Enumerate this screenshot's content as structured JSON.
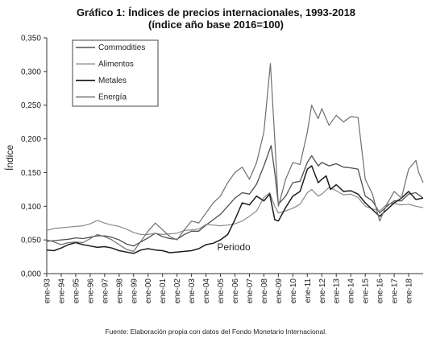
{
  "chart_data": {
    "type": "line",
    "title": "Gráfico 1: Índices de precios internacionales, 1993-2018",
    "subtitle": "(índice año base 2016=100)",
    "xlabel": "Periodo",
    "ylabel": "Índice",
    "source": "Fuente: Elaboración propia con datos del Fondo Monetario Internacional.",
    "xlim": [
      1993.0,
      2019.0
    ],
    "ylim": [
      0,
      0.35
    ],
    "y_ticks": [
      "0,000",
      "0,050",
      "0,100",
      "0,150",
      "0,200",
      "0,250",
      "0,300",
      "0,350"
    ],
    "x_ticks": [
      {
        "x": 1993,
        "label": "ene-93"
      },
      {
        "x": 1994,
        "label": "ene-94"
      },
      {
        "x": 1995,
        "label": "ene-95"
      },
      {
        "x": 1996,
        "label": "ene-96"
      },
      {
        "x": 1997,
        "label": "ene-97"
      },
      {
        "x": 1998,
        "label": "ene-98"
      },
      {
        "x": 1999,
        "label": "ene-99"
      },
      {
        "x": 2000,
        "label": "ene-00"
      },
      {
        "x": 2001,
        "label": "ene-01"
      },
      {
        "x": 2002,
        "label": "ene-02"
      },
      {
        "x": 2003,
        "label": "ene-03"
      },
      {
        "x": 2004,
        "label": "ene-04"
      },
      {
        "x": 2005,
        "label": "ene-05"
      },
      {
        "x": 2006,
        "label": "ene-06"
      },
      {
        "x": 2007,
        "label": "ene-07"
      },
      {
        "x": 2008,
        "label": "ene-08"
      },
      {
        "x": 2009,
        "label": "ene-09"
      },
      {
        "x": 2010,
        "label": "ene-10"
      },
      {
        "x": 2011,
        "label": "ene-11"
      },
      {
        "x": 2012,
        "label": "ene-12"
      },
      {
        "x": 2013,
        "label": "ene-13"
      },
      {
        "x": 2014,
        "label": "ene-14"
      },
      {
        "x": 2015,
        "label": "ene-15"
      },
      {
        "x": 2016,
        "label": "ene-16"
      },
      {
        "x": 2017,
        "label": "ene-17"
      },
      {
        "x": 2018,
        "label": "ene-18"
      }
    ],
    "grid": false,
    "legend": "top-left",
    "series": [
      {
        "name": "Commodities",
        "color": "#505050",
        "width": 1.3,
        "points": [
          [
            1993.0,
            0.048
          ],
          [
            1993.5,
            0.049
          ],
          [
            1994.0,
            0.05
          ],
          [
            1994.5,
            0.051
          ],
          [
            1995.0,
            0.053
          ],
          [
            1995.5,
            0.052
          ],
          [
            1996.0,
            0.054
          ],
          [
            1996.5,
            0.056
          ],
          [
            1997.0,
            0.056
          ],
          [
            1997.5,
            0.054
          ],
          [
            1998.0,
            0.05
          ],
          [
            1998.5,
            0.044
          ],
          [
            1999.0,
            0.041
          ],
          [
            1999.5,
            0.047
          ],
          [
            2000.0,
            0.053
          ],
          [
            2000.5,
            0.06
          ],
          [
            2001.0,
            0.055
          ],
          [
            2001.5,
            0.052
          ],
          [
            2002.0,
            0.051
          ],
          [
            2002.5,
            0.058
          ],
          [
            2003.0,
            0.063
          ],
          [
            2003.5,
            0.063
          ],
          [
            2004.0,
            0.072
          ],
          [
            2004.5,
            0.08
          ],
          [
            2005.0,
            0.088
          ],
          [
            2005.5,
            0.1
          ],
          [
            2006.0,
            0.112
          ],
          [
            2006.5,
            0.12
          ],
          [
            2007.0,
            0.118
          ],
          [
            2007.5,
            0.133
          ],
          [
            2008.0,
            0.16
          ],
          [
            2008.5,
            0.19
          ],
          [
            2008.75,
            0.15
          ],
          [
            2009.0,
            0.103
          ],
          [
            2009.5,
            0.115
          ],
          [
            2010.0,
            0.135
          ],
          [
            2010.5,
            0.137
          ],
          [
            2011.0,
            0.165
          ],
          [
            2011.3,
            0.175
          ],
          [
            2011.75,
            0.16
          ],
          [
            2012.0,
            0.165
          ],
          [
            2012.5,
            0.16
          ],
          [
            2013.0,
            0.163
          ],
          [
            2013.5,
            0.158
          ],
          [
            2014.0,
            0.157
          ],
          [
            2014.5,
            0.155
          ],
          [
            2015.0,
            0.115
          ],
          [
            2015.5,
            0.108
          ],
          [
            2016.0,
            0.09
          ],
          [
            2016.5,
            0.1
          ],
          [
            2017.0,
            0.108
          ],
          [
            2017.5,
            0.108
          ],
          [
            2018.0,
            0.118
          ],
          [
            2018.5,
            0.12
          ],
          [
            2019.0,
            0.112
          ]
        ]
      },
      {
        "name": "Alimentos",
        "color": "#8a8a8a",
        "width": 1.2,
        "points": [
          [
            1993.0,
            0.064
          ],
          [
            1993.5,
            0.067
          ],
          [
            1994.0,
            0.068
          ],
          [
            1994.5,
            0.069
          ],
          [
            1995.0,
            0.07
          ],
          [
            1995.5,
            0.071
          ],
          [
            1996.0,
            0.074
          ],
          [
            1996.5,
            0.079
          ],
          [
            1997.0,
            0.075
          ],
          [
            1997.5,
            0.072
          ],
          [
            1998.0,
            0.07
          ],
          [
            1998.5,
            0.066
          ],
          [
            1999.0,
            0.061
          ],
          [
            1999.5,
            0.058
          ],
          [
            2000.0,
            0.058
          ],
          [
            2000.5,
            0.06
          ],
          [
            2001.0,
            0.058
          ],
          [
            2001.5,
            0.059
          ],
          [
            2002.0,
            0.06
          ],
          [
            2002.5,
            0.064
          ],
          [
            2003.0,
            0.065
          ],
          [
            2003.5,
            0.066
          ],
          [
            2004.0,
            0.073
          ],
          [
            2004.5,
            0.072
          ],
          [
            2005.0,
            0.071
          ],
          [
            2005.5,
            0.072
          ],
          [
            2006.0,
            0.074
          ],
          [
            2006.5,
            0.078
          ],
          [
            2007.0,
            0.085
          ],
          [
            2007.5,
            0.093
          ],
          [
            2008.0,
            0.113
          ],
          [
            2008.4,
            0.12
          ],
          [
            2008.75,
            0.1
          ],
          [
            2009.0,
            0.09
          ],
          [
            2009.5,
            0.093
          ],
          [
            2010.0,
            0.097
          ],
          [
            2010.5,
            0.103
          ],
          [
            2011.0,
            0.12
          ],
          [
            2011.3,
            0.125
          ],
          [
            2011.75,
            0.115
          ],
          [
            2012.0,
            0.118
          ],
          [
            2012.5,
            0.128
          ],
          [
            2013.0,
            0.123
          ],
          [
            2013.5,
            0.117
          ],
          [
            2014.0,
            0.118
          ],
          [
            2014.5,
            0.113
          ],
          [
            2015.0,
            0.1
          ],
          [
            2015.5,
            0.096
          ],
          [
            2016.0,
            0.093
          ],
          [
            2016.5,
            0.103
          ],
          [
            2017.0,
            0.104
          ],
          [
            2017.5,
            0.102
          ],
          [
            2018.0,
            0.103
          ],
          [
            2018.5,
            0.1
          ],
          [
            2019.0,
            0.098
          ]
        ]
      },
      {
        "name": "Metales",
        "color": "#1c1c1c",
        "width": 1.5,
        "points": [
          [
            1993.0,
            0.035
          ],
          [
            1993.5,
            0.034
          ],
          [
            1994.0,
            0.038
          ],
          [
            1994.5,
            0.043
          ],
          [
            1995.0,
            0.046
          ],
          [
            1995.5,
            0.043
          ],
          [
            1996.0,
            0.041
          ],
          [
            1996.5,
            0.039
          ],
          [
            1997.0,
            0.04
          ],
          [
            1997.5,
            0.038
          ],
          [
            1998.0,
            0.034
          ],
          [
            1998.5,
            0.032
          ],
          [
            1999.0,
            0.03
          ],
          [
            1999.5,
            0.035
          ],
          [
            2000.0,
            0.037
          ],
          [
            2000.5,
            0.035
          ],
          [
            2001.0,
            0.034
          ],
          [
            2001.5,
            0.031
          ],
          [
            2002.0,
            0.032
          ],
          [
            2002.5,
            0.033
          ],
          [
            2003.0,
            0.034
          ],
          [
            2003.5,
            0.037
          ],
          [
            2004.0,
            0.043
          ],
          [
            2004.5,
            0.045
          ],
          [
            2005.0,
            0.05
          ],
          [
            2005.5,
            0.058
          ],
          [
            2006.0,
            0.08
          ],
          [
            2006.5,
            0.105
          ],
          [
            2007.0,
            0.102
          ],
          [
            2007.5,
            0.115
          ],
          [
            2008.0,
            0.108
          ],
          [
            2008.4,
            0.118
          ],
          [
            2008.75,
            0.08
          ],
          [
            2009.0,
            0.078
          ],
          [
            2009.5,
            0.098
          ],
          [
            2010.0,
            0.115
          ],
          [
            2010.5,
            0.122
          ],
          [
            2011.0,
            0.155
          ],
          [
            2011.3,
            0.16
          ],
          [
            2011.75,
            0.135
          ],
          [
            2012.0,
            0.14
          ],
          [
            2012.3,
            0.145
          ],
          [
            2012.6,
            0.125
          ],
          [
            2013.0,
            0.132
          ],
          [
            2013.5,
            0.122
          ],
          [
            2014.0,
            0.123
          ],
          [
            2014.5,
            0.118
          ],
          [
            2015.0,
            0.105
          ],
          [
            2015.5,
            0.095
          ],
          [
            2016.0,
            0.085
          ],
          [
            2016.5,
            0.095
          ],
          [
            2017.0,
            0.105
          ],
          [
            2017.5,
            0.112
          ],
          [
            2018.0,
            0.122
          ],
          [
            2018.5,
            0.11
          ],
          [
            2019.0,
            0.112
          ]
        ]
      },
      {
        "name": "Energía",
        "color": "#6e6e6e",
        "width": 1.2,
        "points": [
          [
            1993.0,
            0.05
          ],
          [
            1993.5,
            0.047
          ],
          [
            1994.0,
            0.043
          ],
          [
            1994.5,
            0.046
          ],
          [
            1995.0,
            0.047
          ],
          [
            1995.5,
            0.046
          ],
          [
            1996.0,
            0.052
          ],
          [
            1996.5,
            0.058
          ],
          [
            1997.0,
            0.055
          ],
          [
            1997.5,
            0.05
          ],
          [
            1998.0,
            0.043
          ],
          [
            1998.5,
            0.036
          ],
          [
            1999.0,
            0.033
          ],
          [
            1999.5,
            0.048
          ],
          [
            2000.0,
            0.063
          ],
          [
            2000.5,
            0.075
          ],
          [
            2001.0,
            0.065
          ],
          [
            2001.5,
            0.055
          ],
          [
            2002.0,
            0.05
          ],
          [
            2002.5,
            0.065
          ],
          [
            2003.0,
            0.078
          ],
          [
            2003.5,
            0.075
          ],
          [
            2004.0,
            0.09
          ],
          [
            2004.5,
            0.105
          ],
          [
            2005.0,
            0.115
          ],
          [
            2005.5,
            0.135
          ],
          [
            2006.0,
            0.15
          ],
          [
            2006.5,
            0.158
          ],
          [
            2007.0,
            0.14
          ],
          [
            2007.5,
            0.165
          ],
          [
            2008.0,
            0.21
          ],
          [
            2008.45,
            0.312
          ],
          [
            2008.75,
            0.2
          ],
          [
            2009.0,
            0.1
          ],
          [
            2009.5,
            0.14
          ],
          [
            2010.0,
            0.165
          ],
          [
            2010.5,
            0.162
          ],
          [
            2011.0,
            0.21
          ],
          [
            2011.3,
            0.25
          ],
          [
            2011.75,
            0.23
          ],
          [
            2012.0,
            0.245
          ],
          [
            2012.5,
            0.22
          ],
          [
            2013.0,
            0.235
          ],
          [
            2013.5,
            0.225
          ],
          [
            2014.0,
            0.233
          ],
          [
            2014.5,
            0.232
          ],
          [
            2015.0,
            0.14
          ],
          [
            2015.5,
            0.118
          ],
          [
            2016.0,
            0.078
          ],
          [
            2016.5,
            0.103
          ],
          [
            2017.0,
            0.122
          ],
          [
            2017.5,
            0.112
          ],
          [
            2018.0,
            0.155
          ],
          [
            2018.5,
            0.168
          ],
          [
            2018.7,
            0.15
          ],
          [
            2019.0,
            0.135
          ]
        ]
      }
    ]
  }
}
